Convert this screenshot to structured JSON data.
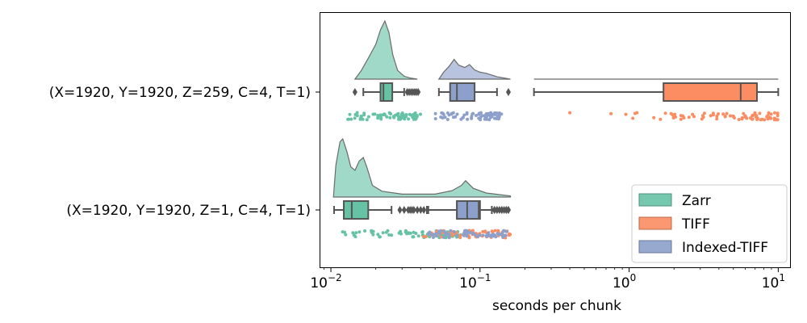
{
  "chart_data": {
    "type": "raincloud",
    "xlabel": "seconds per chunk",
    "xscale": "log",
    "xlim": [
      0.0085,
      12
    ],
    "xticks": [
      {
        "value": 0.01,
        "base": "10",
        "exp": "−2"
      },
      {
        "value": 0.1,
        "base": "10",
        "exp": "−1"
      },
      {
        "value": 1,
        "base": "10",
        "exp": "0"
      },
      {
        "value": 10,
        "base": "10",
        "exp": "1"
      }
    ],
    "categories": [
      "(X=1920, Y=1920, Z=259, C=4, T=1)",
      "(X=1920, Y=1920, Z=1, C=4, T=1)"
    ],
    "legend": {
      "placement": "lower-right",
      "entries": [
        {
          "name": "Zarr",
          "color": "#66c2a5"
        },
        {
          "name": "TIFF",
          "color": "#fc8d62"
        },
        {
          "name": "Indexed-TIFF",
          "color": "#8da0cb"
        }
      ]
    },
    "series": [
      {
        "name": "Zarr",
        "color": "#66c2a5",
        "groups": [
          {
            "category": "(X=1920, Y=1920, Z=259, C=4, T=1)",
            "box": {
              "whislo": 0.0165,
              "q1": 0.0215,
              "med": 0.0225,
              "q3": 0.0258,
              "whishi": 0.031
            },
            "fliers": [
              0.0145,
              0.0325,
              0.0335,
              0.0345,
              0.0355,
              0.0365,
              0.0375,
              0.0385
            ],
            "density": [
              [
                0.0145,
                0.0
              ],
              [
                0.016,
                0.15
              ],
              [
                0.018,
                0.38
              ],
              [
                0.02,
                0.6
              ],
              [
                0.0215,
                0.85
              ],
              [
                0.023,
                1.0
              ],
              [
                0.0245,
                0.8
              ],
              [
                0.026,
                0.42
              ],
              [
                0.028,
                0.15
              ],
              [
                0.031,
                0.05
              ],
              [
                0.034,
                0.02
              ],
              [
                0.038,
                0.0
              ]
            ],
            "points_range": [
              0.013,
              0.04
            ],
            "n_points": 70
          },
          {
            "category": "(X=1920, Y=1920, Z=1, C=4, T=1)",
            "box": {
              "whislo": 0.0105,
              "q1": 0.0122,
              "med": 0.0138,
              "q3": 0.0178,
              "whishi": 0.0255
            },
            "fliers": [
              0.029,
              0.031,
              0.033,
              0.034,
              0.035,
              0.036,
              0.038,
              0.04,
              0.042
            ],
            "density": [
              [
                0.0104,
                0.0
              ],
              [
                0.0108,
                0.55
              ],
              [
                0.0115,
                0.95
              ],
              [
                0.012,
                1.0
              ],
              [
                0.0128,
                0.78
              ],
              [
                0.0136,
                0.52
              ],
              [
                0.0145,
                0.46
              ],
              [
                0.0155,
                0.62
              ],
              [
                0.0165,
                0.68
              ],
              [
                0.0175,
                0.5
              ],
              [
                0.019,
                0.2
              ],
              [
                0.022,
                0.1
              ],
              [
                0.03,
                0.05
              ],
              [
                0.05,
                0.05
              ],
              [
                0.065,
                0.11
              ],
              [
                0.075,
                0.2
              ],
              [
                0.08,
                0.28
              ],
              [
                0.09,
                0.15
              ],
              [
                0.11,
                0.07
              ],
              [
                0.16,
                0.02
              ]
            ],
            "points_range": [
              0.0104,
              0.09
            ],
            "n_points": 80
          }
        ]
      },
      {
        "name": "TIFF",
        "color": "#fc8d62",
        "groups": [
          {
            "category": "(X=1920, Y=1920, Z=259, C=4, T=1)",
            "box": {
              "whislo": 0.23,
              "q1": 1.7,
              "med": 5.6,
              "q3": 7.2,
              "whishi": 10.0
            },
            "fliers": [],
            "density": [
              [
                0.23,
                0.0
              ],
              [
                10.0,
                0.0
              ]
            ],
            "points_range": [
              0.23,
              10.0
            ],
            "n_points": 80
          },
          {
            "category": "(X=1920, Y=1920, Z=1, C=4, T=1)",
            "box": {
              "whislo": 0.045,
              "q1": 0.07,
              "med": 0.086,
              "q3": 0.1,
              "whishi": 0.12
            },
            "fliers": [
              0.125,
              0.13,
              0.135,
              0.14,
              0.145,
              0.15,
              0.155
            ],
            "density": [],
            "points_range": [
              0.04,
              0.16
            ],
            "n_points": 70
          }
        ]
      },
      {
        "name": "Indexed-TIFF",
        "color": "#8da0cb",
        "groups": [
          {
            "category": "(X=1920, Y=1920, Z=259, C=4, T=1)",
            "box": {
              "whislo": 0.053,
              "q1": 0.063,
              "med": 0.07,
              "q3": 0.092,
              "whishi": 0.13
            },
            "fliers": [
              0.155
            ],
            "density": [
              [
                0.053,
                0.0
              ],
              [
                0.057,
                0.12
              ],
              [
                0.062,
                0.22
              ],
              [
                0.067,
                0.34
              ],
              [
                0.072,
                0.24
              ],
              [
                0.079,
                0.2
              ],
              [
                0.085,
                0.25
              ],
              [
                0.092,
                0.16
              ],
              [
                0.1,
                0.12
              ],
              [
                0.11,
                0.1
              ],
              [
                0.13,
                0.04
              ],
              [
                0.16,
                0.0
              ]
            ],
            "points_range": [
              0.05,
              0.14
            ],
            "n_points": 70
          },
          {
            "category": "(X=1920, Y=1920, Z=1, C=4, T=1)",
            "box": {
              "whislo": 0.044,
              "q1": 0.07,
              "med": 0.082,
              "q3": 0.098,
              "whishi": 0.12
            },
            "fliers": [
              0.125,
              0.13,
              0.14,
              0.15,
              0.155
            ],
            "density": [],
            "points_range": [
              0.045,
              0.155
            ],
            "n_points": 70
          }
        ]
      }
    ]
  }
}
